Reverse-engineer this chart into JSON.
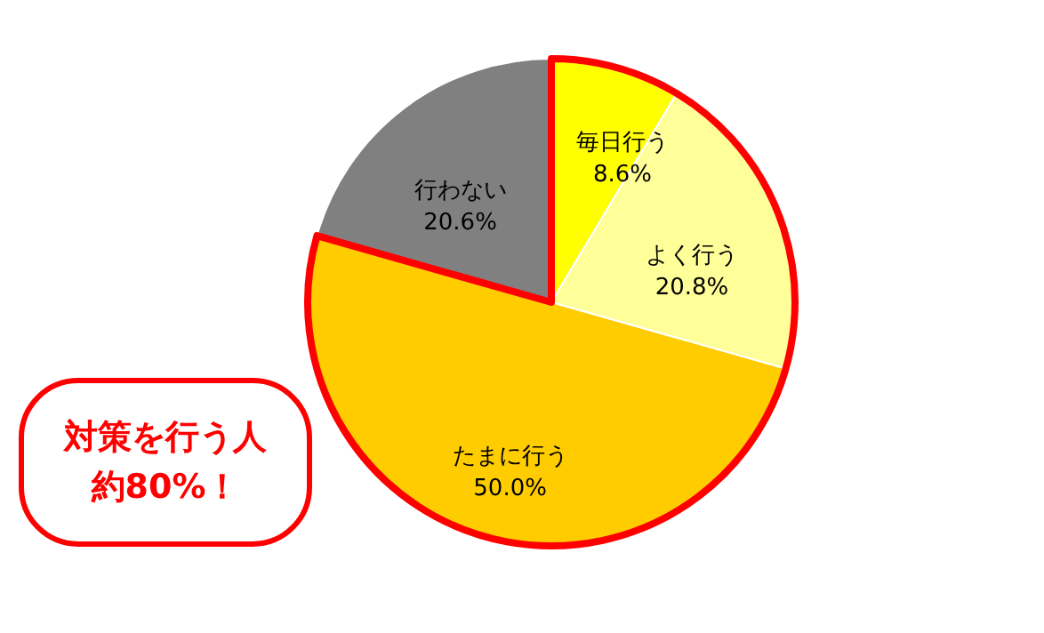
{
  "chart_data": {
    "type": "pie",
    "categories": [
      "毎日行う",
      "よく行う",
      "たまに行う",
      "行わない"
    ],
    "values": [
      8.6,
      20.8,
      50.0,
      20.6
    ],
    "value_labels": [
      "8.6%",
      "20.8%",
      "50.0%",
      "20.6%"
    ],
    "colors": [
      "#ffff00",
      "#ffff99",
      "#ffcc00",
      "#808080"
    ],
    "annotations": [
      "対策を行う人",
      "約80%！"
    ]
  }
}
